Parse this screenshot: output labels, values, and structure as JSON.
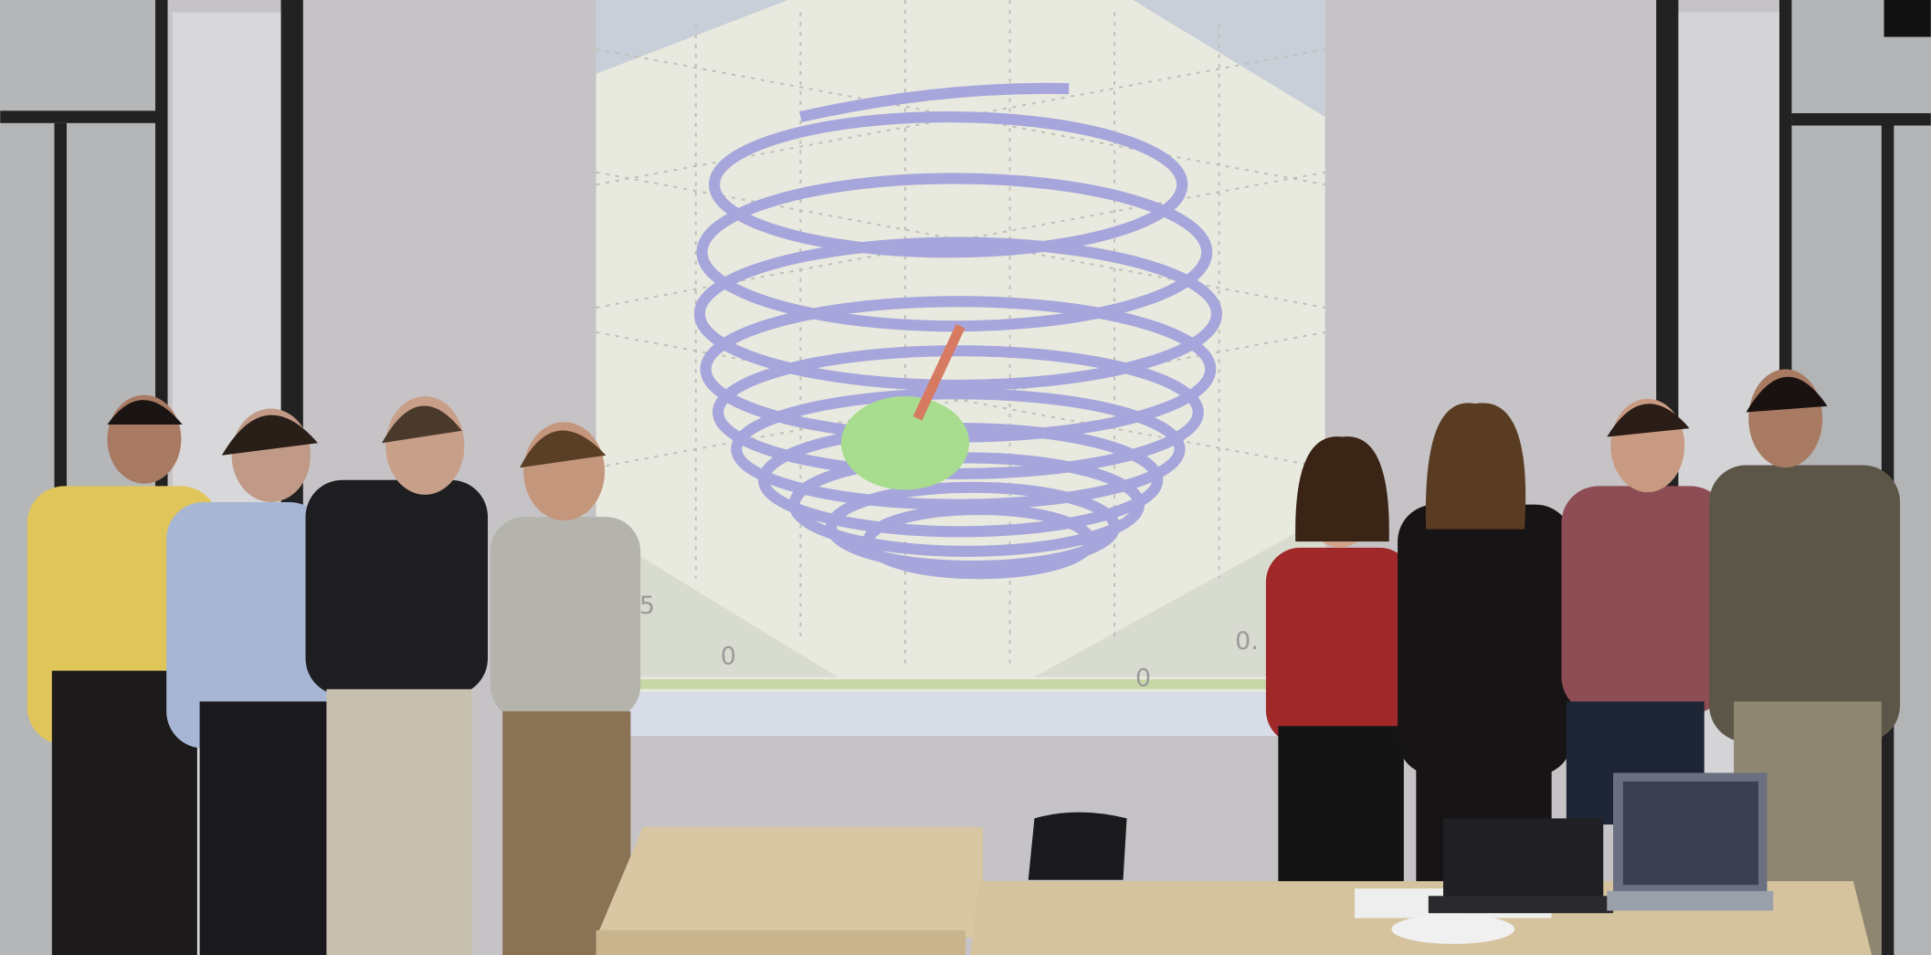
{
  "projection": {
    "tick_labels": [
      "0.5",
      "0",
      "0.",
      "0"
    ]
  }
}
